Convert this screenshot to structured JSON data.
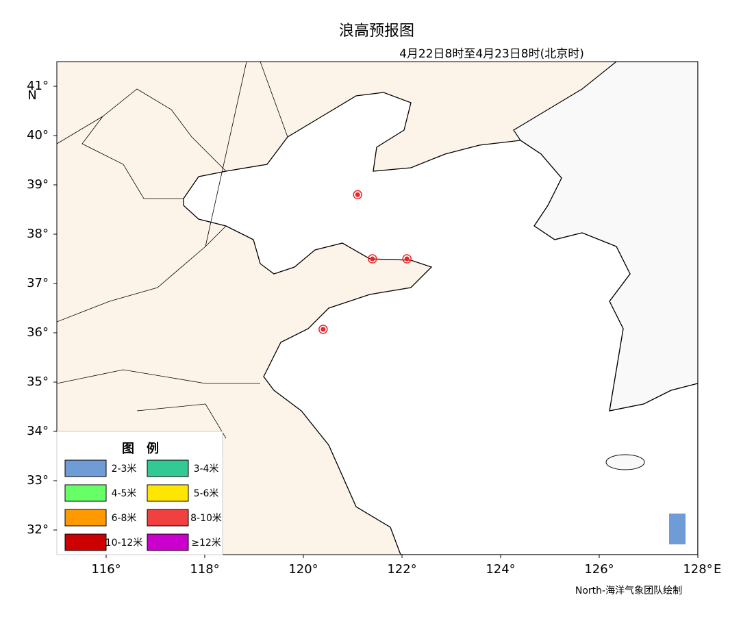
{
  "map": {
    "title": "浪高预报图",
    "subtitle": "4月22日8时至4月23日8时(北京时)",
    "xlim": [
      115,
      128
    ],
    "ylim": [
      31.5,
      41.5
    ],
    "xticks": [
      {
        "value": 116,
        "label": "116°"
      },
      {
        "value": 118,
        "label": "118°"
      },
      {
        "value": 120,
        "label": "120°"
      },
      {
        "value": 122,
        "label": "122°"
      },
      {
        "value": 124,
        "label": "124°"
      },
      {
        "value": 126,
        "label": "126°"
      },
      {
        "value": 128,
        "label": "128°"
      }
    ],
    "yticks": [
      {
        "value": 32,
        "label": "32°"
      },
      {
        "value": 33,
        "label": "33°"
      },
      {
        "value": 34,
        "label": "34°"
      },
      {
        "value": 35,
        "label": "35°"
      },
      {
        "value": 36,
        "label": "36°"
      },
      {
        "value": 37,
        "label": "37°"
      },
      {
        "value": 38,
        "label": "38°"
      },
      {
        "value": 39,
        "label": "39°"
      },
      {
        "value": 40,
        "label": "40°"
      },
      {
        "value": 41,
        "label": "41°"
      }
    ],
    "xlabel": "E",
    "ylabel": "N",
    "stations": {
      "lon": [
        121.1,
        121.4,
        122.1,
        120.4
      ],
      "lat": [
        38.8,
        37.5,
        37.5,
        36.07
      ],
      "color": "#e8262a"
    },
    "legend": {
      "title": "图　例",
      "items": [
        {
          "label": "2-3米",
          "color": "#6f9bd6"
        },
        {
          "label": "3-4米",
          "color": "#33c995"
        },
        {
          "label": "4-5米",
          "color": "#66ff66"
        },
        {
          "label": "5-6米",
          "color": "#ffe600"
        },
        {
          "label": "6-8米",
          "color": "#ff9900"
        },
        {
          "label": "8-10米",
          "color": "#f04040"
        },
        {
          "label": "10-12米",
          "color": "#cc0000"
        },
        {
          "label": "≥12米",
          "color": "#cc00cc"
        }
      ]
    },
    "credit": "North-海洋气象团队绘制"
  }
}
